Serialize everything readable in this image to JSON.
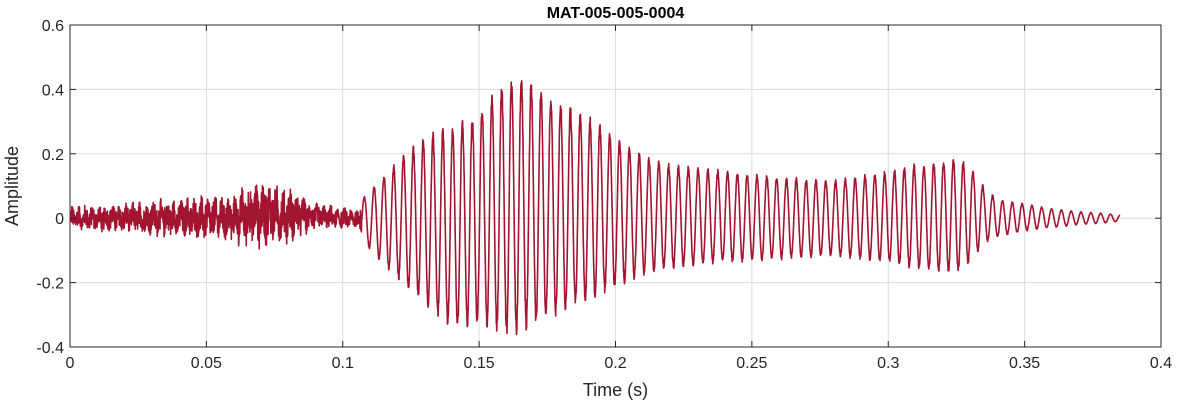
{
  "chart_data": {
    "type": "line",
    "title": "MAT-005-005-0004",
    "xlabel": "Time (s)",
    "ylabel": "Amplitude",
    "xlim": [
      0,
      0.4
    ],
    "ylim": [
      -0.4,
      0.6
    ],
    "xticks": [
      0,
      0.05,
      0.1,
      0.15,
      0.2,
      0.25,
      0.3,
      0.35,
      0.4
    ],
    "xtick_labels": [
      "0",
      "0.05",
      "0.1",
      "0.15",
      "0.2",
      "0.25",
      "0.3",
      "0.35",
      "0.4"
    ],
    "yticks": [
      -0.4,
      -0.2,
      0,
      0.2,
      0.4,
      0.6
    ],
    "ytick_labels": [
      "-0.4",
      "-0.2",
      "0",
      "0.2",
      "0.4",
      "0.6"
    ],
    "grid": true,
    "line_color": "#A2142F",
    "duration": 0.385,
    "envelope": {
      "t": [
        0,
        0.02,
        0.04,
        0.06,
        0.067,
        0.08,
        0.09,
        0.1,
        0.105,
        0.11,
        0.12,
        0.13,
        0.14,
        0.15,
        0.16,
        0.165,
        0.17,
        0.18,
        0.19,
        0.2,
        0.21,
        0.22,
        0.24,
        0.26,
        0.28,
        0.3,
        0.31,
        0.32,
        0.325,
        0.33,
        0.335,
        0.34,
        0.35,
        0.36,
        0.37,
        0.38,
        0.385
      ],
      "upper": [
        0.05,
        0.06,
        0.08,
        0.1,
        0.15,
        0.12,
        0.06,
        0.04,
        0.04,
        0.09,
        0.18,
        0.26,
        0.29,
        0.34,
        0.44,
        0.45,
        0.42,
        0.37,
        0.32,
        0.26,
        0.2,
        0.17,
        0.15,
        0.13,
        0.12,
        0.15,
        0.17,
        0.18,
        0.19,
        0.17,
        0.1,
        0.06,
        0.045,
        0.03,
        0.02,
        0.015,
        0.01
      ],
      "lower": [
        -0.05,
        -0.06,
        -0.08,
        -0.1,
        -0.12,
        -0.1,
        -0.05,
        -0.04,
        -0.04,
        -0.1,
        -0.19,
        -0.27,
        -0.35,
        -0.33,
        -0.37,
        -0.36,
        -0.34,
        -0.3,
        -0.26,
        -0.22,
        -0.18,
        -0.16,
        -0.14,
        -0.13,
        -0.12,
        -0.14,
        -0.16,
        -0.17,
        -0.17,
        -0.14,
        -0.08,
        -0.06,
        -0.04,
        -0.03,
        -0.02,
        -0.015,
        -0.01
      ]
    },
    "segments": [
      {
        "t_start": 0,
        "t_end": 0.107,
        "kind": "noise"
      },
      {
        "t_start": 0.107,
        "t_end": 0.385,
        "kind": "tone",
        "period": 0.0036
      }
    ]
  }
}
